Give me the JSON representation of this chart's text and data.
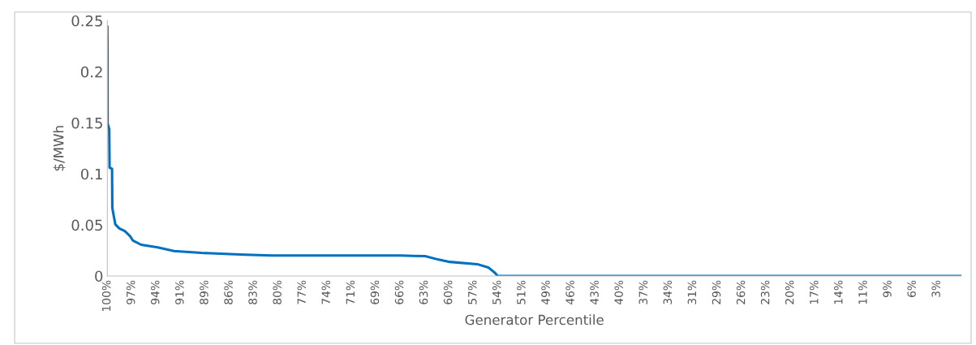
{
  "chart_data": {
    "type": "line",
    "xlabel": "Generator Percentile",
    "ylabel": "$/MWh",
    "x": [
      100,
      99.98,
      99.97,
      99.78,
      99.74,
      99.45,
      99.42,
      99.07,
      98.6,
      97.96,
      97.3,
      97.0,
      96.04,
      94.1,
      92.2,
      89.0,
      83.9,
      80.7,
      65.7,
      62.8,
      61.2,
      59.9,
      56.7,
      55.4,
      54.6,
      54.3,
      0
    ],
    "series": [
      {
        "color": "#0070c0",
        "values": [
          0.244,
          0.218,
          0.149,
          0.144,
          0.106,
          0.105,
          0.0665,
          0.0506,
          0.0466,
          0.044,
          0.0386,
          0.0346,
          0.0306,
          0.028,
          0.0245,
          0.0226,
          0.0208,
          0.02,
          0.02,
          0.0194,
          0.016,
          0.0138,
          0.0116,
          0.0084,
          0.003,
          0,
          0
        ]
      }
    ],
    "xlim": [
      100,
      0
    ],
    "ylim": [
      0,
      0.25
    ],
    "yticks": [
      0,
      0.05,
      0.1,
      0.15,
      0.2,
      0.25
    ],
    "xticks": [
      {
        "value": 100,
        "label": "100%"
      },
      {
        "value": 97.14,
        "label": "97%"
      },
      {
        "value": 94.29,
        "label": "94%"
      },
      {
        "value": 91.43,
        "label": "91%"
      },
      {
        "value": 88.57,
        "label": "89%"
      },
      {
        "value": 85.71,
        "label": "86%"
      },
      {
        "value": 82.86,
        "label": "83%"
      },
      {
        "value": 80,
        "label": "80%"
      },
      {
        "value": 77.14,
        "label": "77%"
      },
      {
        "value": 74.29,
        "label": "74%"
      },
      {
        "value": 71.43,
        "label": "71%"
      },
      {
        "value": 68.57,
        "label": "69%"
      },
      {
        "value": 65.71,
        "label": "66%"
      },
      {
        "value": 62.86,
        "label": "63%"
      },
      {
        "value": 60,
        "label": "60%"
      },
      {
        "value": 57.14,
        "label": "57%"
      },
      {
        "value": 54.29,
        "label": "54%"
      },
      {
        "value": 51.43,
        "label": "51%"
      },
      {
        "value": 48.57,
        "label": "49%"
      },
      {
        "value": 45.71,
        "label": "46%"
      },
      {
        "value": 42.86,
        "label": "43%"
      },
      {
        "value": 40,
        "label": "40%"
      },
      {
        "value": 37.14,
        "label": "37%"
      },
      {
        "value": 34.29,
        "label": "34%"
      },
      {
        "value": 31.43,
        "label": "31%"
      },
      {
        "value": 28.57,
        "label": "29%"
      },
      {
        "value": 25.71,
        "label": "26%"
      },
      {
        "value": 22.86,
        "label": "23%"
      },
      {
        "value": 20,
        "label": "20%"
      },
      {
        "value": 17.14,
        "label": "17%"
      },
      {
        "value": 14.29,
        "label": "14%"
      },
      {
        "value": 11.43,
        "label": "11%"
      },
      {
        "value": 8.57,
        "label": "9%"
      },
      {
        "value": 5.71,
        "label": "6%"
      },
      {
        "value": 2.86,
        "label": "3%"
      }
    ],
    "grid": false,
    "legend": false,
    "marker": "none",
    "line_style": "solid"
  }
}
